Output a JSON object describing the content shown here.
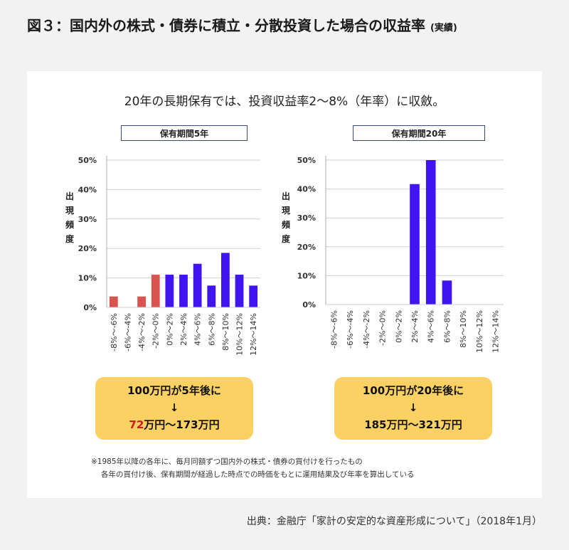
{
  "header": {
    "title": "図３：国内外の株式・債券に積立・分散投資した場合の収益率",
    "title_suffix": "(実績)"
  },
  "chart_subtitle": "20年の長期保有では、投資収益率2～8%（年率）に収斂。",
  "y_axis_label": [
    "出",
    "現",
    "頻",
    "度"
  ],
  "colors": {
    "negative": "#d9534f",
    "positive": "#3f14f0",
    "result_box": "#fbd163",
    "highlight": "#d31a1a"
  },
  "chart_data": [
    {
      "type": "bar",
      "title": "保有期間5年",
      "ylabel": "出現頻度",
      "ylim": [
        0,
        50
      ],
      "yticks": [
        "0%",
        "10%",
        "20%",
        "30%",
        "40%",
        "50%"
      ],
      "categories": [
        "-8%～-6%",
        "-6%～-4%",
        "-4%～-2%",
        "-2%～0%",
        "0%～2%",
        "2%～4%",
        "4%～6%",
        "6%～8%",
        "8%～10%",
        "10%～12%",
        "12%～14%"
      ],
      "values": [
        3.7,
        0,
        3.7,
        11.1,
        11.1,
        11.1,
        14.8,
        7.4,
        18.5,
        11.1,
        7.4
      ],
      "bar_colors": [
        "negative",
        "negative",
        "negative",
        "negative",
        "positive",
        "positive",
        "positive",
        "positive",
        "positive",
        "positive",
        "positive"
      ],
      "grid": true
    },
    {
      "type": "bar",
      "title": "保有期間20年",
      "ylabel": "出現頻度",
      "ylim": [
        0,
        50
      ],
      "yticks": [
        "0%",
        "10%",
        "20%",
        "30%",
        "40%",
        "50%"
      ],
      "categories": [
        "-8%～-6%",
        "-6%～-4%",
        "-4%～-2%",
        "-2%～0%",
        "0%～2%",
        "2%～4%",
        "4%～6%",
        "6%～8%",
        "8%～10%",
        "10%～12%",
        "12%～14%"
      ],
      "values": [
        0,
        0,
        0,
        0,
        0,
        41.7,
        50,
        8.3,
        0,
        0,
        0
      ],
      "bar_colors": [
        "negative",
        "negative",
        "negative",
        "negative",
        "positive",
        "positive",
        "positive",
        "positive",
        "positive",
        "positive",
        "positive"
      ],
      "grid": true
    }
  ],
  "results": [
    {
      "line1": "100万円が5年後に",
      "arrow": "↓",
      "low": "72",
      "range_rest": "万円～173万円"
    },
    {
      "line1": "100万円が20年後に",
      "arrow": "↓",
      "low": "185",
      "range_rest": "万円～321万円"
    }
  ],
  "notes": [
    "※1985年以降の各年に、毎月同額ずつ国内外の株式・債券の買付けを行ったもの",
    "各年の買付け後、保有期間が経過した時点での時価をもとに運用結果及び年率を算出している"
  ],
  "source": "出典：金融庁「家計の安定的な資産形成について」（2018年1月）"
}
